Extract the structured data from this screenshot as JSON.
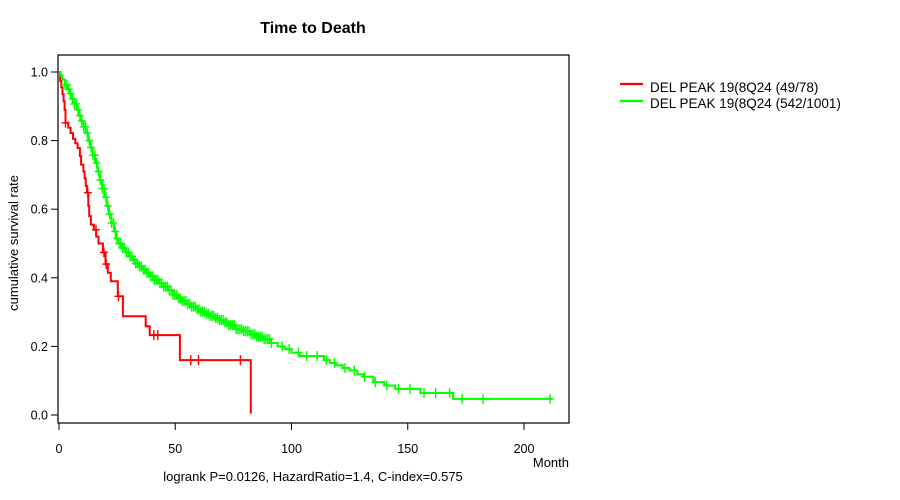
{
  "figure": {
    "title": "Time to Death",
    "x_axis_label": "Month",
    "y_axis_label": "cumulative survival rate",
    "caption": "logrank P=0.0126, HazardRatio=1.4, C-index=0.575",
    "background_color": "#ffffff",
    "frame_color": "#000000"
  },
  "legend": {
    "position": "right-outside",
    "entries": [
      {
        "label": "DEL PEAK 19(8Q24 (49/78)",
        "color": "#ff0000"
      },
      {
        "label": "DEL PEAK 19(8Q24 (542/1001)",
        "color": "#00ff00"
      }
    ]
  },
  "chart_data": {
    "type": "line",
    "subtype": "kaplan-meier-step",
    "title": "Time to Death",
    "xlabel": "Month",
    "ylabel": "cumulative survival rate",
    "xlim": [
      0,
      219
    ],
    "ylim": [
      0,
      1.05
    ],
    "x_ticks": [
      0,
      50,
      100,
      150,
      200
    ],
    "y_tick_labels": [
      "0.0",
      "0.2",
      "0.4",
      "0.6",
      "0.8",
      "1.0"
    ],
    "grid": false,
    "legend_position": "right-outside",
    "annotation": "logrank P=0.0126, HazardRatio=1.4, C-index=0.575",
    "series": [
      {
        "name": "DEL PEAK 19(8Q24 (49/78)",
        "color": "#ff0000",
        "steps": [
          [
            0,
            1.0
          ],
          [
            0.5,
            0.974
          ],
          [
            1,
            0.955
          ],
          [
            1.5,
            0.935
          ],
          [
            2,
            0.915
          ],
          [
            2.4,
            0.89
          ],
          [
            2.8,
            0.852
          ],
          [
            4,
            0.838
          ],
          [
            5,
            0.822
          ],
          [
            6,
            0.805
          ],
          [
            7,
            0.792
          ],
          [
            8,
            0.778
          ],
          [
            9,
            0.755
          ],
          [
            9.5,
            0.73
          ],
          [
            10.5,
            0.71
          ],
          [
            11,
            0.69
          ],
          [
            11.5,
            0.668
          ],
          [
            12,
            0.648
          ],
          [
            12.6,
            0.61
          ],
          [
            13,
            0.58
          ],
          [
            13.7,
            0.555
          ],
          [
            15,
            0.54
          ],
          [
            16,
            0.52
          ],
          [
            17,
            0.5
          ],
          [
            18.9,
            0.474
          ],
          [
            20,
            0.44
          ],
          [
            21,
            0.415
          ],
          [
            22.3,
            0.39
          ],
          [
            25.3,
            0.346
          ],
          [
            27.5,
            0.288
          ],
          [
            37.3,
            0.259
          ],
          [
            39,
            0.233
          ],
          [
            52,
            0.16
          ],
          [
            82.5,
            0.004
          ]
        ],
        "censor_months": [
          2.8,
          12.4,
          15.9,
          19.3,
          20.3,
          25.6,
          40.8,
          42.5,
          56.7,
          60,
          78
        ]
      },
      {
        "name": "DEL PEAK 19(8Q24 (542/1001)",
        "color": "#00ff00",
        "steps": [
          [
            0,
            1.0
          ],
          [
            0.7,
            0.99
          ],
          [
            1.5,
            0.978
          ],
          [
            2.5,
            0.963
          ],
          [
            3.5,
            0.95
          ],
          [
            4.5,
            0.937
          ],
          [
            5.5,
            0.922
          ],
          [
            6.5,
            0.907
          ],
          [
            7.5,
            0.89
          ],
          [
            8.5,
            0.873
          ],
          [
            9.5,
            0.857
          ],
          [
            10.6,
            0.84
          ],
          [
            11.5,
            0.822
          ],
          [
            12.5,
            0.8
          ],
          [
            13.5,
            0.78
          ],
          [
            14.5,
            0.757
          ],
          [
            15.5,
            0.735
          ],
          [
            16.5,
            0.71
          ],
          [
            17.5,
            0.685
          ],
          [
            18.5,
            0.66
          ],
          [
            19.5,
            0.635
          ],
          [
            20.5,
            0.61
          ],
          [
            21.5,
            0.585
          ],
          [
            22.5,
            0.56
          ],
          [
            23.6,
            0.535
          ],
          [
            24.5,
            0.515
          ],
          [
            25.5,
            0.5
          ],
          [
            27,
            0.487
          ],
          [
            28.5,
            0.474
          ],
          [
            30,
            0.462
          ],
          [
            31.5,
            0.452
          ],
          [
            33,
            0.442
          ],
          [
            34.5,
            0.433
          ],
          [
            36,
            0.424
          ],
          [
            37.3,
            0.415
          ],
          [
            39,
            0.405
          ],
          [
            41,
            0.394
          ],
          [
            43,
            0.384
          ],
          [
            45,
            0.374
          ],
          [
            47,
            0.364
          ],
          [
            49,
            0.35
          ],
          [
            51,
            0.34
          ],
          [
            53,
            0.332
          ],
          [
            55,
            0.324
          ],
          [
            57,
            0.316
          ],
          [
            59,
            0.308
          ],
          [
            61,
            0.301
          ],
          [
            63,
            0.295
          ],
          [
            65,
            0.289
          ],
          [
            67,
            0.283
          ],
          [
            69,
            0.277
          ],
          [
            71,
            0.27
          ],
          [
            73,
            0.262
          ],
          [
            76,
            0.25
          ],
          [
            79,
            0.244
          ],
          [
            82,
            0.235
          ],
          [
            85,
            0.228
          ],
          [
            88,
            0.221
          ],
          [
            91,
            0.21
          ],
          [
            94,
            0.2
          ],
          [
            97,
            0.192
          ],
          [
            100,
            0.182
          ],
          [
            103.5,
            0.172
          ],
          [
            114,
            0.16
          ],
          [
            116.5,
            0.152
          ],
          [
            119,
            0.145
          ],
          [
            122,
            0.137
          ],
          [
            125,
            0.13
          ],
          [
            128.3,
            0.119
          ],
          [
            131,
            0.112
          ],
          [
            135.2,
            0.096
          ],
          [
            140,
            0.086
          ],
          [
            144.6,
            0.076
          ],
          [
            155.4,
            0.064
          ],
          [
            169.5,
            0.047
          ],
          [
            212,
            0.047
          ]
        ],
        "censor_months": [
          2.6,
          3.4,
          4.2,
          5.0,
          5.8,
          6.6,
          7.4,
          8.2,
          9.0,
          9.8,
          10.6,
          11.4,
          12.2,
          13.0,
          13.8,
          14.6,
          15.4,
          16.2,
          17.0,
          17.8,
          18.6,
          19.4,
          20.2,
          21.0,
          21.8,
          22.6,
          23.4,
          24.2,
          25.0,
          25.8,
          26.6,
          27.4,
          28.2,
          29.0,
          29.8,
          30.6,
          31.4,
          32.2,
          33.0,
          33.8,
          34.6,
          35.4,
          36.2,
          37.0,
          37.8,
          38.6,
          39.4,
          40.2,
          41.0,
          41.8,
          42.6,
          43.4,
          44.2,
          45.0,
          45.8,
          46.6,
          47.4,
          48.2,
          49.0,
          49.8,
          50.6,
          51.4,
          52.2,
          53.0,
          53.8,
          54.6,
          55.4,
          56.2,
          57.0,
          57.8,
          58.6,
          59.4,
          60.2,
          61.0,
          61.8,
          62.6,
          63.4,
          64.2,
          65.0,
          65.8,
          66.6,
          67.4,
          68.2,
          69.0,
          69.8,
          70.6,
          71.4,
          72.2,
          73.0,
          73.8,
          74.6,
          75.4,
          76.2,
          77.0,
          77.8,
          78.6,
          79.4,
          80.2,
          81.0,
          81.8,
          82.6,
          83.4,
          84.2,
          85.0,
          85.8,
          86.6,
          87.4,
          88.2,
          89.0,
          89.8,
          90.6,
          91.4,
          96,
          99,
          103,
          106.5,
          111,
          115,
          118.5,
          123,
          127,
          131.5,
          136,
          141,
          146,
          151,
          157,
          162,
          168,
          173.4,
          182.4,
          211.2
        ]
      }
    ]
  }
}
